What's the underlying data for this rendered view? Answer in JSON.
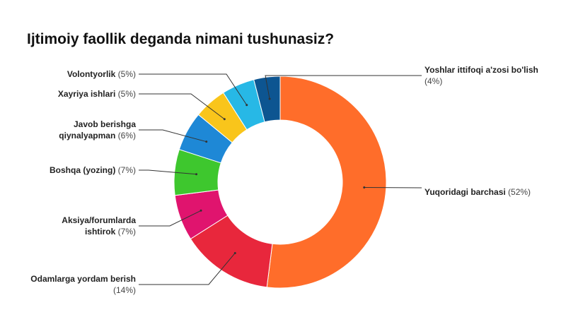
{
  "chart_data": {
    "type": "donut",
    "title": "Ijtimoiy faollik deganda nimani tushunasiz?",
    "categories": [
      "Yuqoridagi barchasi",
      "Odamlarga yordam berish",
      "Aksiya/forumlarda ishtirok",
      "Boshqa (yozing)",
      "Javob berishga qiynalyapman",
      "Xayriya ishlari",
      "Volontyorlik",
      "Yoshlar ittifoqi a'zosi bo'lish"
    ],
    "values": [
      52,
      14,
      7,
      7,
      6,
      5,
      5,
      4
    ],
    "value_labels": [
      "(52%)",
      "(14%)",
      "(7%)",
      "(7%)",
      "(6%)",
      "(5%)",
      "(5%)",
      "(4%)"
    ],
    "colors": [
      "#ff6d2a",
      "#e8273c",
      "#e0146e",
      "#3ec72e",
      "#1e88d6",
      "#f9c51b",
      "#27b8e6",
      "#0d5591"
    ]
  }
}
